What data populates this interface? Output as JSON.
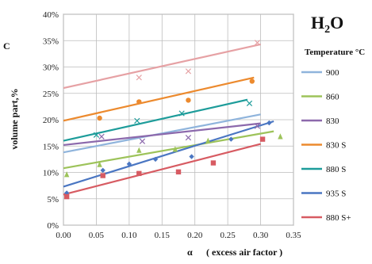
{
  "chart_data": {
    "type": "scatter",
    "title_main": "H",
    "title_sub": "2",
    "title_tail": "O",
    "ylabel": "volume part,%",
    "ylabel_prefix": "C",
    "xlabel_symbol": "α",
    "xlabel_text": "( excess air factor )",
    "xlim": [
      0,
      0.35
    ],
    "ylim": [
      0,
      40
    ],
    "x_ticks": [
      0.0,
      0.05,
      0.1,
      0.15,
      0.2,
      0.25,
      0.3,
      0.35
    ],
    "x_tick_labels": [
      "0.00",
      "0.05",
      "0.10",
      "0.15",
      "0.20",
      "0.25",
      "0.30",
      "0.35"
    ],
    "y_ticks": [
      0,
      5,
      10,
      15,
      20,
      25,
      30,
      35,
      40
    ],
    "y_tick_labels": [
      "0%",
      "5%",
      "10%",
      "15%",
      "20%",
      "25%",
      "30%",
      "35%",
      "40%"
    ],
    "grid": true,
    "legend_title": "Temperature °C",
    "legend_position": "right",
    "series": [
      {
        "name": "900",
        "color": "#8fb4dc",
        "marker": "diamond",
        "line": [
          [
            0,
            13.8
          ],
          [
            0.3,
            21.0
          ]
        ],
        "points": []
      },
      {
        "name": "860",
        "color": "#9dc35a",
        "marker": "triangle",
        "line": [
          [
            0,
            10.8
          ],
          [
            0.32,
            17.8
          ]
        ],
        "points": [
          [
            0.005,
            9.6
          ],
          [
            0.055,
            11.5
          ],
          [
            0.115,
            14.2
          ],
          [
            0.17,
            14.4
          ],
          [
            0.22,
            16.0
          ],
          [
            0.33,
            16.8
          ]
        ]
      },
      {
        "name": "830",
        "color": "#8c69ac",
        "marker": "x",
        "line": [
          [
            0,
            15.2
          ],
          [
            0.3,
            19.3
          ]
        ],
        "points": [
          [
            0.058,
            16.8
          ],
          [
            0.12,
            15.9
          ],
          [
            0.19,
            16.6
          ],
          [
            0.295,
            18.8
          ]
        ]
      },
      {
        "name": "830 S",
        "color": "#ec8a2e",
        "marker": "circle",
        "line": [
          [
            0,
            19.8
          ],
          [
            0.29,
            28.0
          ]
        ],
        "points": [
          [
            0.055,
            20.3
          ],
          [
            0.115,
            23.4
          ],
          [
            0.19,
            23.7
          ],
          [
            0.287,
            27.3
          ]
        ]
      },
      {
        "name": "880 S",
        "color": "#1d9c9a",
        "marker": "x",
        "line": [
          [
            0,
            16.0
          ],
          [
            0.28,
            23.8
          ]
        ],
        "points": [
          [
            0.05,
            17.1
          ],
          [
            0.112,
            19.8
          ],
          [
            0.18,
            21.2
          ],
          [
            0.283,
            23.1
          ]
        ]
      },
      {
        "name": "935 S",
        "color": "#4a76c2",
        "marker": "diamond",
        "line": [
          [
            0,
            7.3
          ],
          [
            0.32,
            19.7
          ]
        ],
        "points": [
          [
            0.005,
            6.1
          ],
          [
            0.06,
            10.4
          ],
          [
            0.1,
            11.6
          ],
          [
            0.14,
            12.5
          ],
          [
            0.195,
            13.0
          ],
          [
            0.255,
            16.3
          ],
          [
            0.313,
            19.4
          ]
        ]
      },
      {
        "name": "880 S+",
        "color": "#d75b62",
        "marker": "square",
        "line": [
          [
            0,
            5.8
          ],
          [
            0.3,
            15.4
          ]
        ],
        "points": [
          [
            0.005,
            5.4
          ],
          [
            0.06,
            9.4
          ],
          [
            0.115,
            9.8
          ],
          [
            0.175,
            10.1
          ],
          [
            0.228,
            11.8
          ],
          [
            0.303,
            16.3
          ]
        ]
      },
      {
        "name": "",
        "color": "#e6a1a4",
        "marker": "x",
        "line": [
          [
            0,
            26.0
          ],
          [
            0.3,
            34.3
          ]
        ],
        "points": [
          [
            0.115,
            28.0
          ],
          [
            0.19,
            29.2
          ],
          [
            0.295,
            34.6
          ]
        ]
      }
    ]
  }
}
